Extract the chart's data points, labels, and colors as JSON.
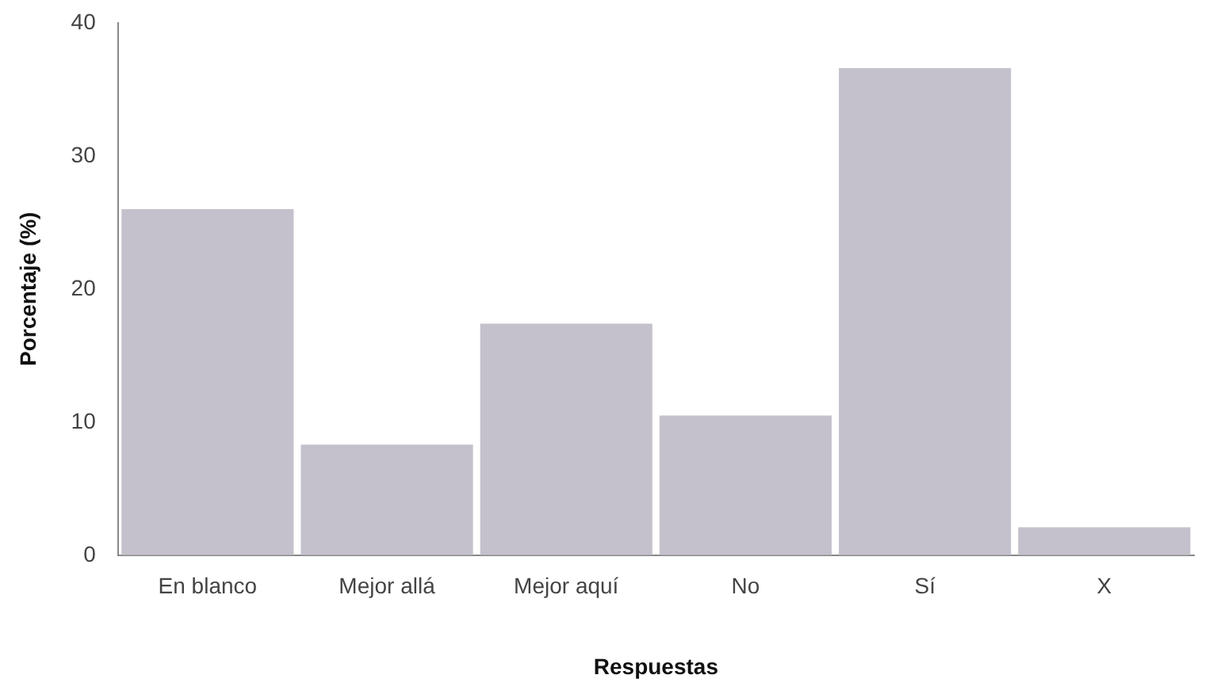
{
  "chart_data": {
    "type": "bar",
    "xlabel": "Respuestas",
    "ylabel": "Porcentaje (%)",
    "categories": [
      "En blanco",
      "Mejor allá",
      "Mejor aquí",
      "No",
      "Sí",
      "X"
    ],
    "values": [
      26,
      8.3,
      17.4,
      10.5,
      36.6,
      2.1
    ],
    "color": "#c5c1cc",
    "ylim": [
      0,
      40
    ],
    "yticks": [
      0,
      10,
      20,
      30,
      40
    ],
    "grid": false,
    "legend": false
  }
}
